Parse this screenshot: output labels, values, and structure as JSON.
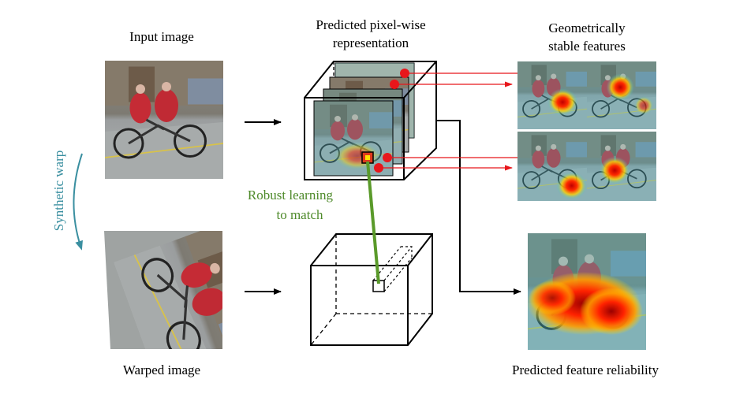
{
  "labels": {
    "input_image": "Input image",
    "warped_image": "Warped image",
    "predicted_repr_line1": "Predicted pixel-wise",
    "predicted_repr_line2": "representation",
    "stable_line1": "Geometrically",
    "stable_line2": "stable features",
    "synthetic_warp": "Synthetic warp",
    "robust_line1": "Robust learning",
    "robust_line2": "to match",
    "reliability": "Predicted feature reliability"
  },
  "colors": {
    "red_arrow": "#e8161b",
    "green_link": "#5a9a2a",
    "warp_arrow": "#3a8fa0",
    "robust_text": "#4e8a2a"
  }
}
